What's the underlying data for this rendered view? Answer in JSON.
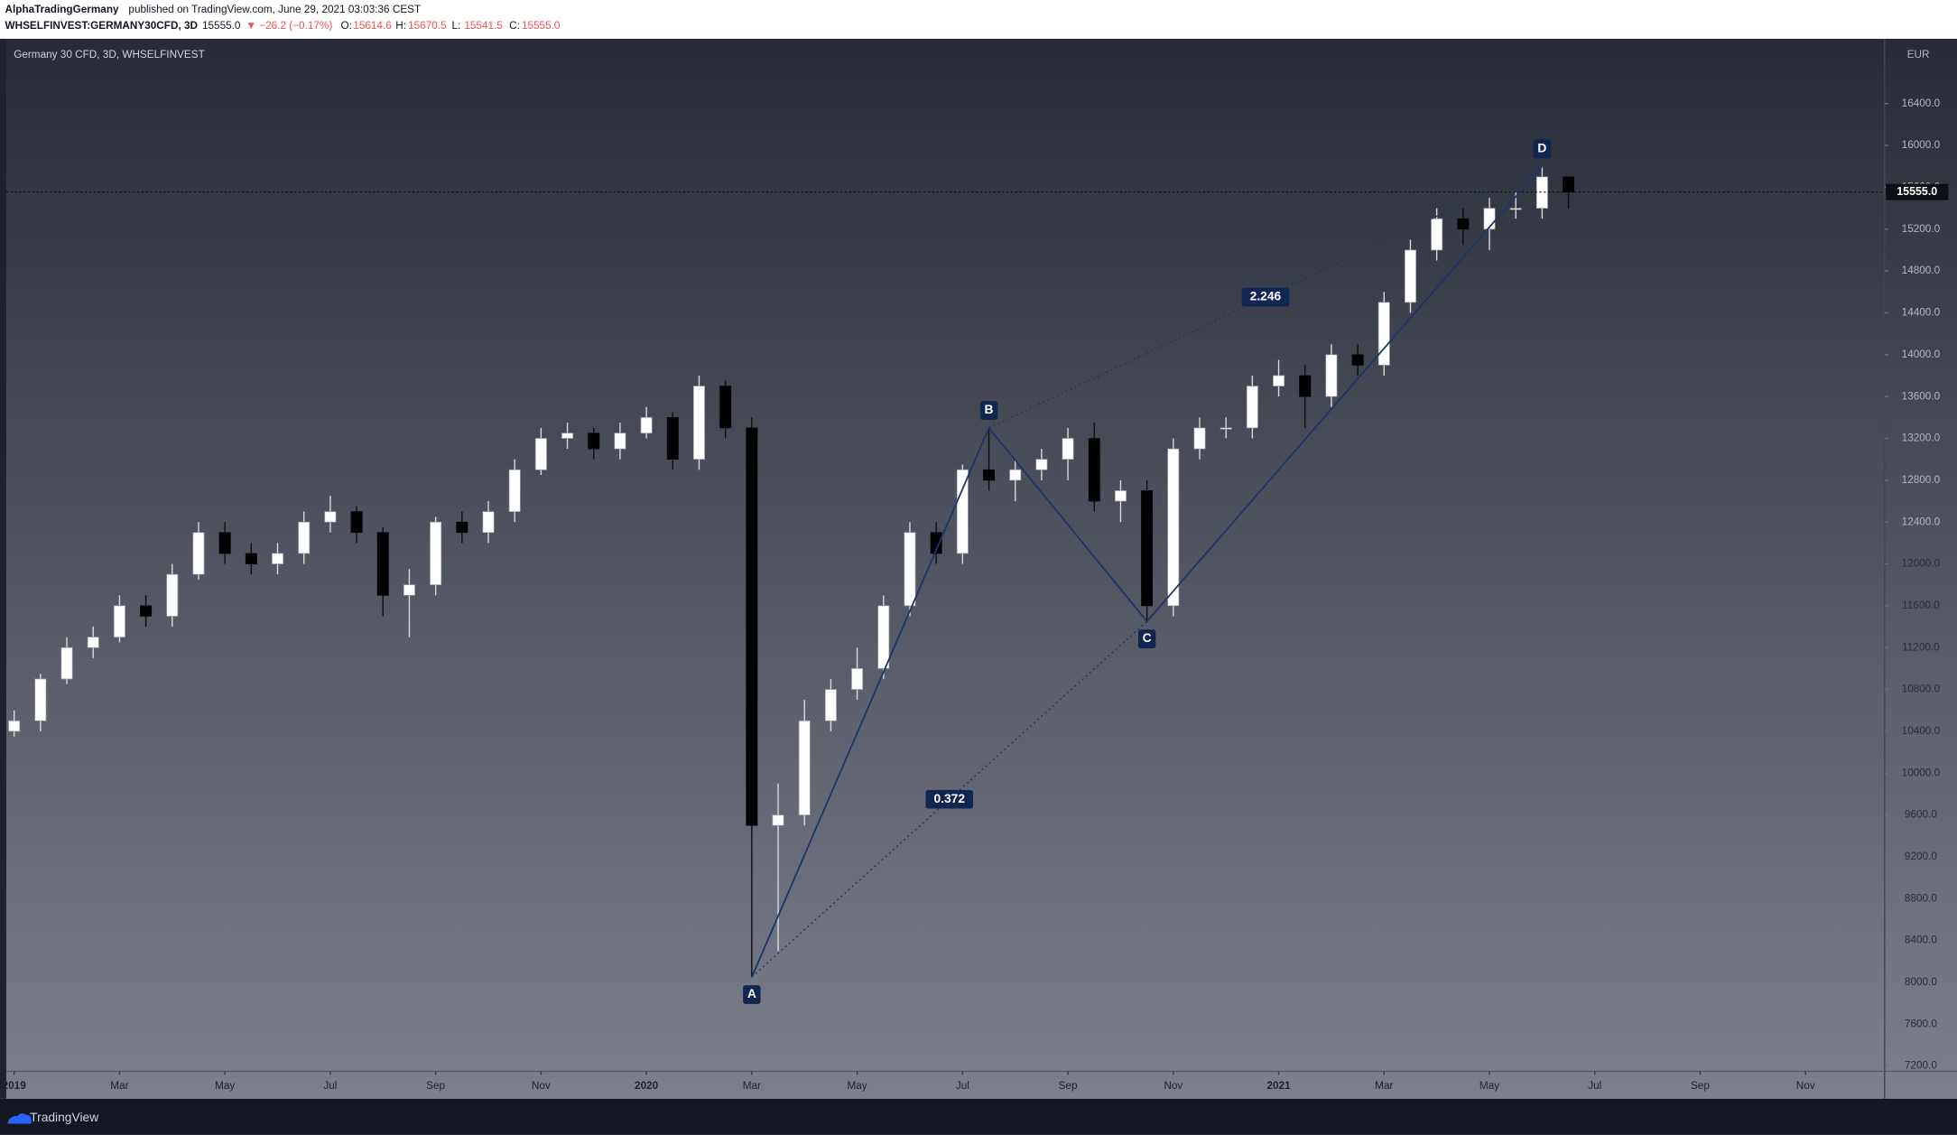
{
  "header": {
    "author": "AlphaTradingGermany",
    "published": "published on TradingView.com, June 29, 2021 03:03:36 CEST",
    "symbol": "WHSELFINVEST:GERMANY30CFD, 3D",
    "price": "15555.0",
    "change": "▼ −26.2 (−0.17%)",
    "o_label": "O:",
    "o": "15614.6",
    "h_label": "H:",
    "h": "15670.5",
    "l_label": "L:",
    "l": "15541.5",
    "c_label": "C:",
    "c": "15555.0"
  },
  "footer": {
    "brand": "TradingView"
  },
  "chart_data": {
    "type": "candlestick",
    "title": "Germany 30 CFD, 3D, WHSELFINVEST",
    "currency": "EUR",
    "categories": [
      null,
      null,
      null,
      null,
      null,
      null,
      null,
      null,
      null,
      null,
      null,
      null,
      null,
      null,
      null,
      null,
      null,
      null,
      null,
      null,
      null,
      null,
      null,
      null,
      null,
      null,
      null,
      null,
      null,
      null,
      null,
      null,
      null,
      null,
      null,
      null,
      null,
      null,
      null,
      null,
      null,
      null,
      null,
      null,
      null,
      null,
      null,
      null,
      null,
      null,
      null,
      null,
      null,
      null,
      null,
      null,
      null,
      null,
      null,
      null
    ],
    "open": [
      10400,
      10500,
      10900,
      11200,
      11300,
      11600,
      11500,
      11900,
      12300,
      12100,
      12000,
      12100,
      12400,
      12500,
      12300,
      11700,
      11800,
      12400,
      12300,
      12500,
      12900,
      13200,
      13250,
      13100,
      13250,
      13400,
      13000,
      13700,
      13300,
      9500,
      9600,
      10500,
      10800,
      11000,
      11600,
      12300,
      12100,
      12900,
      12800,
      12900,
      13000,
      13200,
      12600,
      12700,
      11600,
      13100,
      13300,
      13300,
      13700,
      13800,
      13600,
      14000,
      13900,
      14500,
      15000,
      15300,
      15200,
      15400,
      15400,
      15700
    ],
    "high": [
      10600,
      10950,
      11300,
      11400,
      11700,
      11700,
      12000,
      12400,
      12400,
      12200,
      12200,
      12500,
      12650,
      12550,
      12350,
      11950,
      12450,
      12500,
      12600,
      13000,
      13300,
      13350,
      13300,
      13350,
      13500,
      13450,
      13800,
      13750,
      13400,
      9900,
      10700,
      10900,
      11200,
      11700,
      12400,
      12400,
      12950,
      13300,
      13000,
      13100,
      13300,
      13350,
      12800,
      12800,
      13200,
      13400,
      13400,
      13800,
      13950,
      13900,
      14100,
      14100,
      14600,
      15100,
      15400,
      15400,
      15500,
      15550,
      15800,
      15700
    ],
    "low": [
      10350,
      10400,
      10850,
      11100,
      11250,
      11400,
      11400,
      11850,
      12000,
      11900,
      11900,
      12000,
      12300,
      12200,
      11500,
      11300,
      11700,
      12200,
      12200,
      12400,
      12850,
      13100,
      13000,
      13000,
      13200,
      12900,
      12900,
      13200,
      8050,
      8300,
      9500,
      10400,
      10700,
      10900,
      11500,
      12000,
      12000,
      12700,
      12600,
      12800,
      12800,
      12500,
      12400,
      11450,
      11500,
      13000,
      13200,
      13200,
      13600,
      13300,
      13500,
      13800,
      13800,
      14400,
      14900,
      15050,
      15000,
      15300,
      15300,
      15400
    ],
    "close": [
      10500,
      10900,
      11200,
      11300,
      11600,
      11500,
      11900,
      12300,
      12100,
      12000,
      12100,
      12400,
      12500,
      12300,
      11700,
      11800,
      12400,
      12300,
      12500,
      12900,
      13200,
      13250,
      13100,
      13250,
      13400,
      13000,
      13700,
      13300,
      9500,
      9600,
      10500,
      10800,
      11000,
      11600,
      12300,
      12100,
      12900,
      12800,
      12900,
      13000,
      13200,
      12600,
      12700,
      11600,
      13100,
      13300,
      13300,
      13700,
      13800,
      13600,
      14000,
      13900,
      14500,
      15000,
      15300,
      15200,
      15400,
      15400,
      15700,
      15555
    ],
    "up_color": "#ffffff",
    "down_color": "#000000",
    "xlim": [
      -0.3,
      71
    ],
    "xticks": [
      {
        "value": 0,
        "label": "2019"
      },
      {
        "value": 4,
        "label": "Mar"
      },
      {
        "value": 8,
        "label": "May"
      },
      {
        "value": 12,
        "label": "Jul"
      },
      {
        "value": 16,
        "label": "Sep"
      },
      {
        "value": 20,
        "label": "Nov"
      },
      {
        "value": 24,
        "label": "2020"
      },
      {
        "value": 28,
        "label": "Mar"
      },
      {
        "value": 32,
        "label": "May"
      },
      {
        "value": 36,
        "label": "Jul"
      },
      {
        "value": 40,
        "label": "Sep"
      },
      {
        "value": 44,
        "label": "Nov"
      },
      {
        "value": 48,
        "label": "2021"
      },
      {
        "value": 52,
        "label": "Mar"
      },
      {
        "value": 56,
        "label": "May"
      },
      {
        "value": 60,
        "label": "Jul"
      },
      {
        "value": 64,
        "label": "Sep"
      },
      {
        "value": 68,
        "label": "Nov"
      }
    ],
    "ylim": [
      7150,
      17020
    ],
    "yticks": [
      {
        "value": 7200,
        "label": "7200.0"
      },
      {
        "value": 7600,
        "label": "7600.0"
      },
      {
        "value": 8000,
        "label": "8000.0"
      },
      {
        "value": 8400,
        "label": "8400.0"
      },
      {
        "value": 8800,
        "label": "8800.0"
      },
      {
        "value": 9200,
        "label": "9200.0"
      },
      {
        "value": 9600,
        "label": "9600.0"
      },
      {
        "value": 10000,
        "label": "10000.0"
      },
      {
        "value": 10400,
        "label": "10400.0"
      },
      {
        "value": 10800,
        "label": "10800.0"
      },
      {
        "value": 11200,
        "label": "11200.0"
      },
      {
        "value": 11600,
        "label": "11600.0"
      },
      {
        "value": 12000,
        "label": "12000.0"
      },
      {
        "value": 12400,
        "label": "12400.0"
      },
      {
        "value": 12800,
        "label": "12800.0"
      },
      {
        "value": 13200,
        "label": "13200.0"
      },
      {
        "value": 13600,
        "label": "13600.0"
      },
      {
        "value": 14000,
        "label": "14000.0"
      },
      {
        "value": 14400,
        "label": "14400.0"
      },
      {
        "value": 14800,
        "label": "14800.0"
      },
      {
        "value": 15200,
        "label": "15200.0"
      },
      {
        "value": 15600,
        "label": "15600.0"
      },
      {
        "value": 16000,
        "label": "16000.0"
      },
      {
        "value": 16400,
        "label": "16400.0"
      }
    ],
    "last_price": {
      "value": 15555,
      "label": "15555.0"
    },
    "pattern_color": "#1c3566",
    "points": [
      {
        "label": "A",
        "x": 28,
        "y": 8050
      },
      {
        "label": "B",
        "x": 37,
        "y": 13300
      },
      {
        "label": "C",
        "x": 43,
        "y": 11450
      },
      {
        "label": "D",
        "x": 58,
        "y": 15800
      }
    ],
    "ratios": [
      {
        "value": 0.372,
        "between": [
          "A",
          "C"
        ]
      },
      {
        "value": 2.246,
        "between": [
          "B",
          "D"
        ]
      }
    ]
  }
}
